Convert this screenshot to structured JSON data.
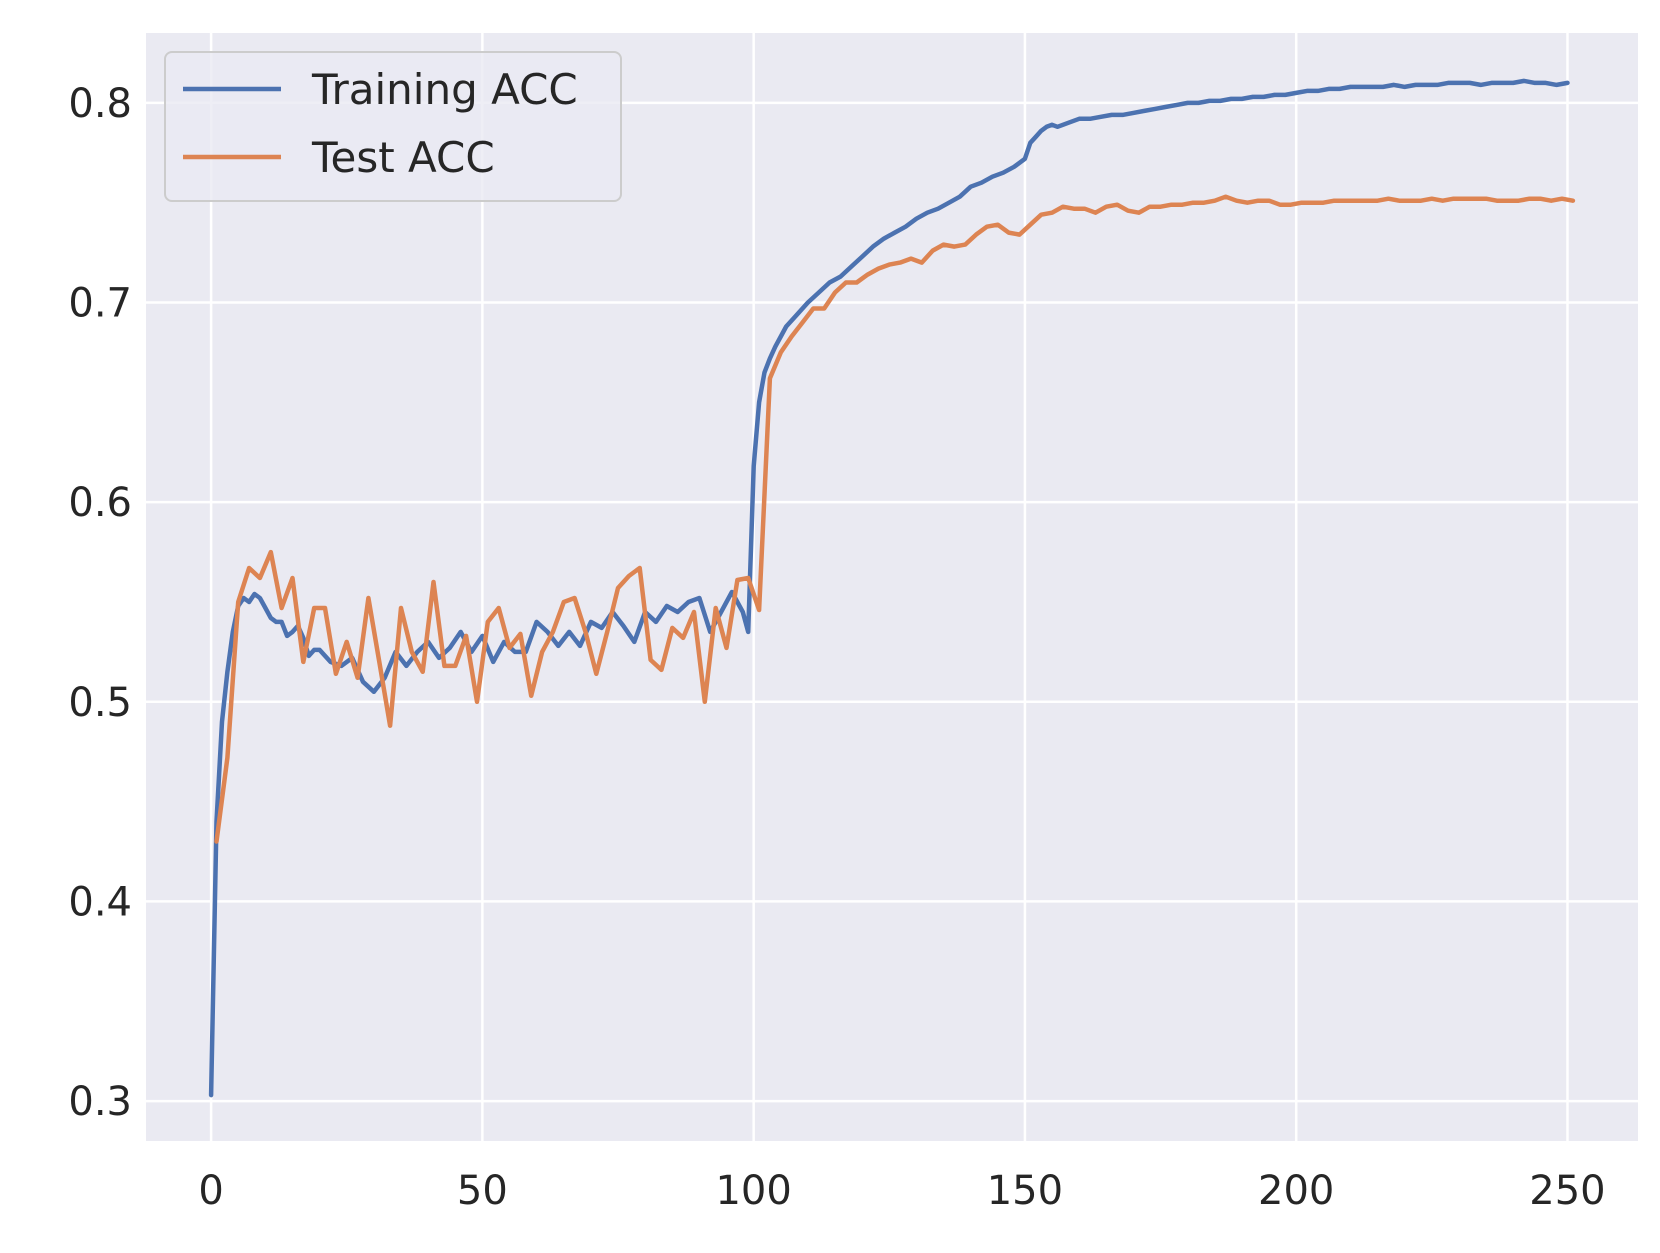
{
  "chart_data": {
    "type": "line",
    "title": "",
    "xlabel": "",
    "ylabel": "",
    "xlim": [
      -12,
      263
    ],
    "ylim": [
      0.28,
      0.835
    ],
    "xticks": [
      0,
      50,
      100,
      150,
      200,
      250
    ],
    "xtick_labels": [
      "0",
      "50",
      "100",
      "150",
      "200",
      "250"
    ],
    "yticks": [
      0.3,
      0.4,
      0.5,
      0.6,
      0.7,
      0.8
    ],
    "ytick_labels": [
      "0.3",
      "0.4",
      "0.5",
      "0.6",
      "0.7",
      "0.8"
    ],
    "grid": true,
    "legend_position": "top-left",
    "background": "#eaeaf2",
    "series": [
      {
        "name": "Training ACC",
        "color": "#4c72b0",
        "x": [
          0,
          1,
          2,
          3,
          4,
          5,
          6,
          7,
          8,
          9,
          10,
          11,
          12,
          13,
          14,
          15,
          16,
          17,
          18,
          19,
          20,
          22,
          24,
          26,
          28,
          30,
          32,
          34,
          36,
          38,
          40,
          42,
          44,
          46,
          48,
          50,
          52,
          54,
          56,
          58,
          60,
          62,
          64,
          66,
          68,
          70,
          72,
          74,
          76,
          78,
          80,
          82,
          84,
          86,
          88,
          90,
          92,
          94,
          96,
          98,
          99,
          100,
          101,
          102,
          103,
          104,
          105,
          106,
          108,
          110,
          112,
          114,
          116,
          118,
          120,
          122,
          124,
          126,
          128,
          130,
          132,
          134,
          136,
          138,
          140,
          142,
          144,
          146,
          148,
          150,
          151,
          152,
          153,
          154,
          155,
          156,
          158,
          160,
          162,
          164,
          166,
          168,
          170,
          172,
          174,
          176,
          178,
          180,
          182,
          184,
          186,
          188,
          190,
          192,
          194,
          196,
          198,
          200,
          202,
          204,
          206,
          208,
          210,
          212,
          214,
          216,
          218,
          220,
          222,
          224,
          226,
          228,
          230,
          232,
          234,
          236,
          238,
          240,
          242,
          244,
          246,
          248,
          250
        ],
        "values": [
          0.303,
          0.44,
          0.49,
          0.515,
          0.535,
          0.548,
          0.552,
          0.55,
          0.554,
          0.552,
          0.547,
          0.542,
          0.54,
          0.54,
          0.533,
          0.535,
          0.538,
          0.532,
          0.523,
          0.526,
          0.526,
          0.52,
          0.518,
          0.522,
          0.51,
          0.505,
          0.512,
          0.525,
          0.518,
          0.525,
          0.53,
          0.522,
          0.527,
          0.535,
          0.525,
          0.533,
          0.52,
          0.53,
          0.525,
          0.525,
          0.54,
          0.535,
          0.528,
          0.535,
          0.528,
          0.54,
          0.537,
          0.545,
          0.538,
          0.53,
          0.545,
          0.54,
          0.548,
          0.545,
          0.55,
          0.552,
          0.535,
          0.545,
          0.555,
          0.545,
          0.535,
          0.618,
          0.65,
          0.665,
          0.672,
          0.678,
          0.683,
          0.688,
          0.694,
          0.7,
          0.705,
          0.71,
          0.713,
          0.718,
          0.723,
          0.728,
          0.732,
          0.735,
          0.738,
          0.742,
          0.745,
          0.747,
          0.75,
          0.753,
          0.758,
          0.76,
          0.763,
          0.765,
          0.768,
          0.772,
          0.78,
          0.783,
          0.786,
          0.788,
          0.789,
          0.788,
          0.79,
          0.792,
          0.792,
          0.793,
          0.794,
          0.794,
          0.795,
          0.796,
          0.797,
          0.798,
          0.799,
          0.8,
          0.8,
          0.801,
          0.801,
          0.802,
          0.802,
          0.803,
          0.803,
          0.804,
          0.804,
          0.805,
          0.806,
          0.806,
          0.807,
          0.807,
          0.808,
          0.808,
          0.808,
          0.808,
          0.809,
          0.808,
          0.809,
          0.809,
          0.809,
          0.81,
          0.81,
          0.81,
          0.809,
          0.81,
          0.81,
          0.81,
          0.811,
          0.81,
          0.81,
          0.809,
          0.81
        ]
      },
      {
        "name": "Test ACC",
        "color": "#dd8452",
        "x": [
          1,
          3,
          5,
          7,
          9,
          11,
          13,
          15,
          17,
          19,
          21,
          23,
          25,
          27,
          29,
          31,
          33,
          35,
          37,
          39,
          41,
          43,
          45,
          47,
          49,
          51,
          53,
          55,
          57,
          59,
          61,
          63,
          65,
          67,
          69,
          71,
          73,
          75,
          77,
          79,
          81,
          83,
          85,
          87,
          89,
          91,
          93,
          95,
          97,
          99,
          101,
          103,
          105,
          107,
          109,
          111,
          113,
          115,
          117,
          119,
          121,
          123,
          125,
          127,
          129,
          131,
          133,
          135,
          137,
          139,
          141,
          143,
          145,
          147,
          149,
          151,
          153,
          155,
          157,
          159,
          161,
          163,
          165,
          167,
          169,
          171,
          173,
          175,
          177,
          179,
          181,
          183,
          185,
          187,
          189,
          191,
          193,
          195,
          197,
          199,
          201,
          203,
          205,
          207,
          209,
          211,
          213,
          215,
          217,
          219,
          221,
          223,
          225,
          227,
          229,
          231,
          233,
          235,
          237,
          239,
          241,
          243,
          245,
          247,
          249,
          251
        ],
        "values": [
          0.43,
          0.472,
          0.55,
          0.567,
          0.562,
          0.575,
          0.547,
          0.562,
          0.52,
          0.547,
          0.547,
          0.514,
          0.53,
          0.512,
          0.552,
          0.52,
          0.488,
          0.547,
          0.525,
          0.515,
          0.56,
          0.518,
          0.518,
          0.533,
          0.5,
          0.54,
          0.547,
          0.527,
          0.534,
          0.503,
          0.525,
          0.535,
          0.55,
          0.552,
          0.535,
          0.514,
          0.535,
          0.557,
          0.563,
          0.567,
          0.521,
          0.516,
          0.537,
          0.532,
          0.545,
          0.5,
          0.547,
          0.527,
          0.561,
          0.562,
          0.546,
          0.662,
          0.675,
          0.683,
          0.69,
          0.697,
          0.697,
          0.705,
          0.71,
          0.71,
          0.714,
          0.717,
          0.719,
          0.72,
          0.722,
          0.72,
          0.726,
          0.729,
          0.728,
          0.729,
          0.734,
          0.738,
          0.739,
          0.735,
          0.734,
          0.739,
          0.744,
          0.745,
          0.748,
          0.747,
          0.747,
          0.745,
          0.748,
          0.749,
          0.746,
          0.745,
          0.748,
          0.748,
          0.749,
          0.749,
          0.75,
          0.75,
          0.751,
          0.753,
          0.751,
          0.75,
          0.751,
          0.751,
          0.749,
          0.749,
          0.75,
          0.75,
          0.75,
          0.751,
          0.751,
          0.751,
          0.751,
          0.751,
          0.752,
          0.751,
          0.751,
          0.751,
          0.752,
          0.751,
          0.752,
          0.752,
          0.752,
          0.752,
          0.751,
          0.751,
          0.751,
          0.752,
          0.752,
          0.751,
          0.752,
          0.751
        ]
      }
    ]
  }
}
